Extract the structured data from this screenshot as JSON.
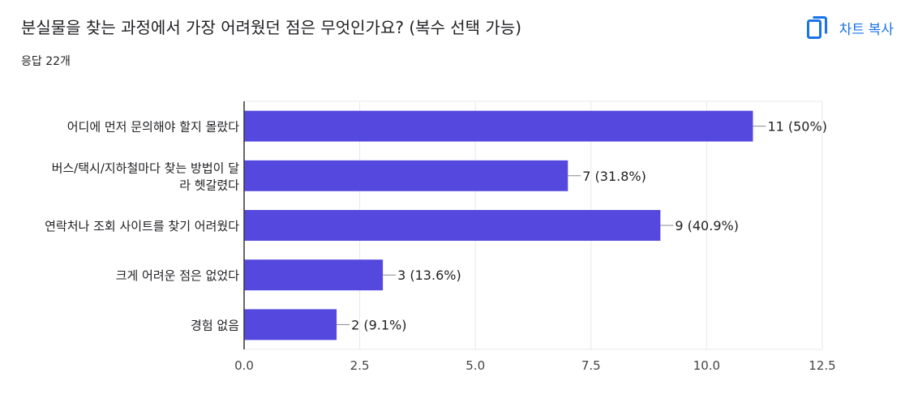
{
  "header": {
    "title": "분실물을 찾는 과정에서 가장 어려웠던 점은 무엇인가요? (복수 선택 가능)",
    "copy_chart_label": "차트 복사",
    "response_count": "응답 22개"
  },
  "icons": {
    "copy": "copy-icon"
  },
  "colors": {
    "bar": "#5548de",
    "accent": "#1a73e8",
    "grid": "#e8e8e8",
    "axis": "#333333",
    "text": "#202124"
  },
  "chart_data": {
    "type": "bar",
    "orientation": "horizontal",
    "title": "",
    "xlabel": "",
    "ylabel": "",
    "xlim": [
      0,
      12.5
    ],
    "x_ticks": [
      "0.0",
      "2.5",
      "5.0",
      "7.5",
      "10.0",
      "12.5"
    ],
    "grid": true,
    "legend": "none",
    "categories": [
      [
        "어디에 먼저 문의해야 할지 몰랐다"
      ],
      [
        "버스/택시/지하철마다 찾는 방법이 달",
        "라 헷갈렸다"
      ],
      [
        "연락처나 조회 사이트를 찾기 어려웠다"
      ],
      [
        "크게 어려운 점은 없었다"
      ],
      [
        "경험 없음"
      ]
    ],
    "values": [
      11,
      7,
      9,
      3,
      2
    ],
    "data_labels": [
      "11 (50%)",
      "7 (31.8%)",
      "9 (40.9%)",
      "3 (13.6%)",
      "2 (9.1%)"
    ]
  }
}
